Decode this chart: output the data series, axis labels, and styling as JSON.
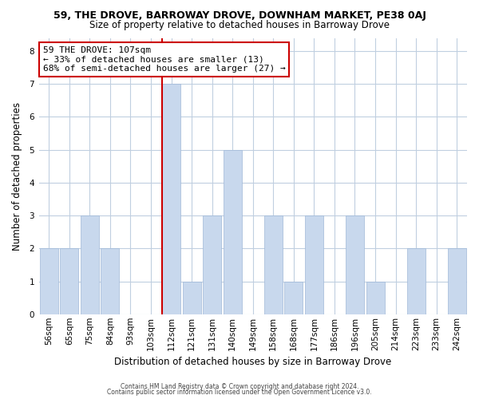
{
  "title": "59, THE DROVE, BARROWAY DROVE, DOWNHAM MARKET, PE38 0AJ",
  "subtitle": "Size of property relative to detached houses in Barroway Drove",
  "xlabel": "Distribution of detached houses by size in Barroway Drove",
  "ylabel": "Number of detached properties",
  "footnote1": "Contains HM Land Registry data © Crown copyright and database right 2024.",
  "footnote2": "Contains public sector information licensed under the Open Government Licence v3.0.",
  "bar_labels": [
    "56sqm",
    "65sqm",
    "75sqm",
    "84sqm",
    "93sqm",
    "103sqm",
    "112sqm",
    "121sqm",
    "131sqm",
    "140sqm",
    "149sqm",
    "158sqm",
    "168sqm",
    "177sqm",
    "186sqm",
    "196sqm",
    "205sqm",
    "214sqm",
    "223sqm",
    "233sqm",
    "242sqm"
  ],
  "bar_values": [
    2,
    2,
    3,
    2,
    0,
    0,
    7,
    1,
    3,
    5,
    0,
    3,
    1,
    3,
    0,
    3,
    1,
    0,
    2,
    0,
    2
  ],
  "highlight_index": 6,
  "bar_color": "#c8d8ed",
  "bar_edge_color": "#a0b8d8",
  "highlight_line_color": "#cc0000",
  "annotation_line1": "59 THE DROVE: 107sqm",
  "annotation_line2": "← 33% of detached houses are smaller (13)",
  "annotation_line3": "68% of semi-detached houses are larger (27) →",
  "annotation_box_edge_color": "#cc0000",
  "annotation_box_face_color": "#ffffff",
  "ylim": [
    0,
    8.4
  ],
  "yticks": [
    0,
    1,
    2,
    3,
    4,
    5,
    6,
    7,
    8
  ],
  "background_color": "#ffffff",
  "grid_color": "#c0cfe0",
  "title_fontsize": 9,
  "subtitle_fontsize": 8.5,
  "axis_label_fontsize": 8.5,
  "tick_fontsize": 7.5,
  "annotation_fontsize": 8
}
